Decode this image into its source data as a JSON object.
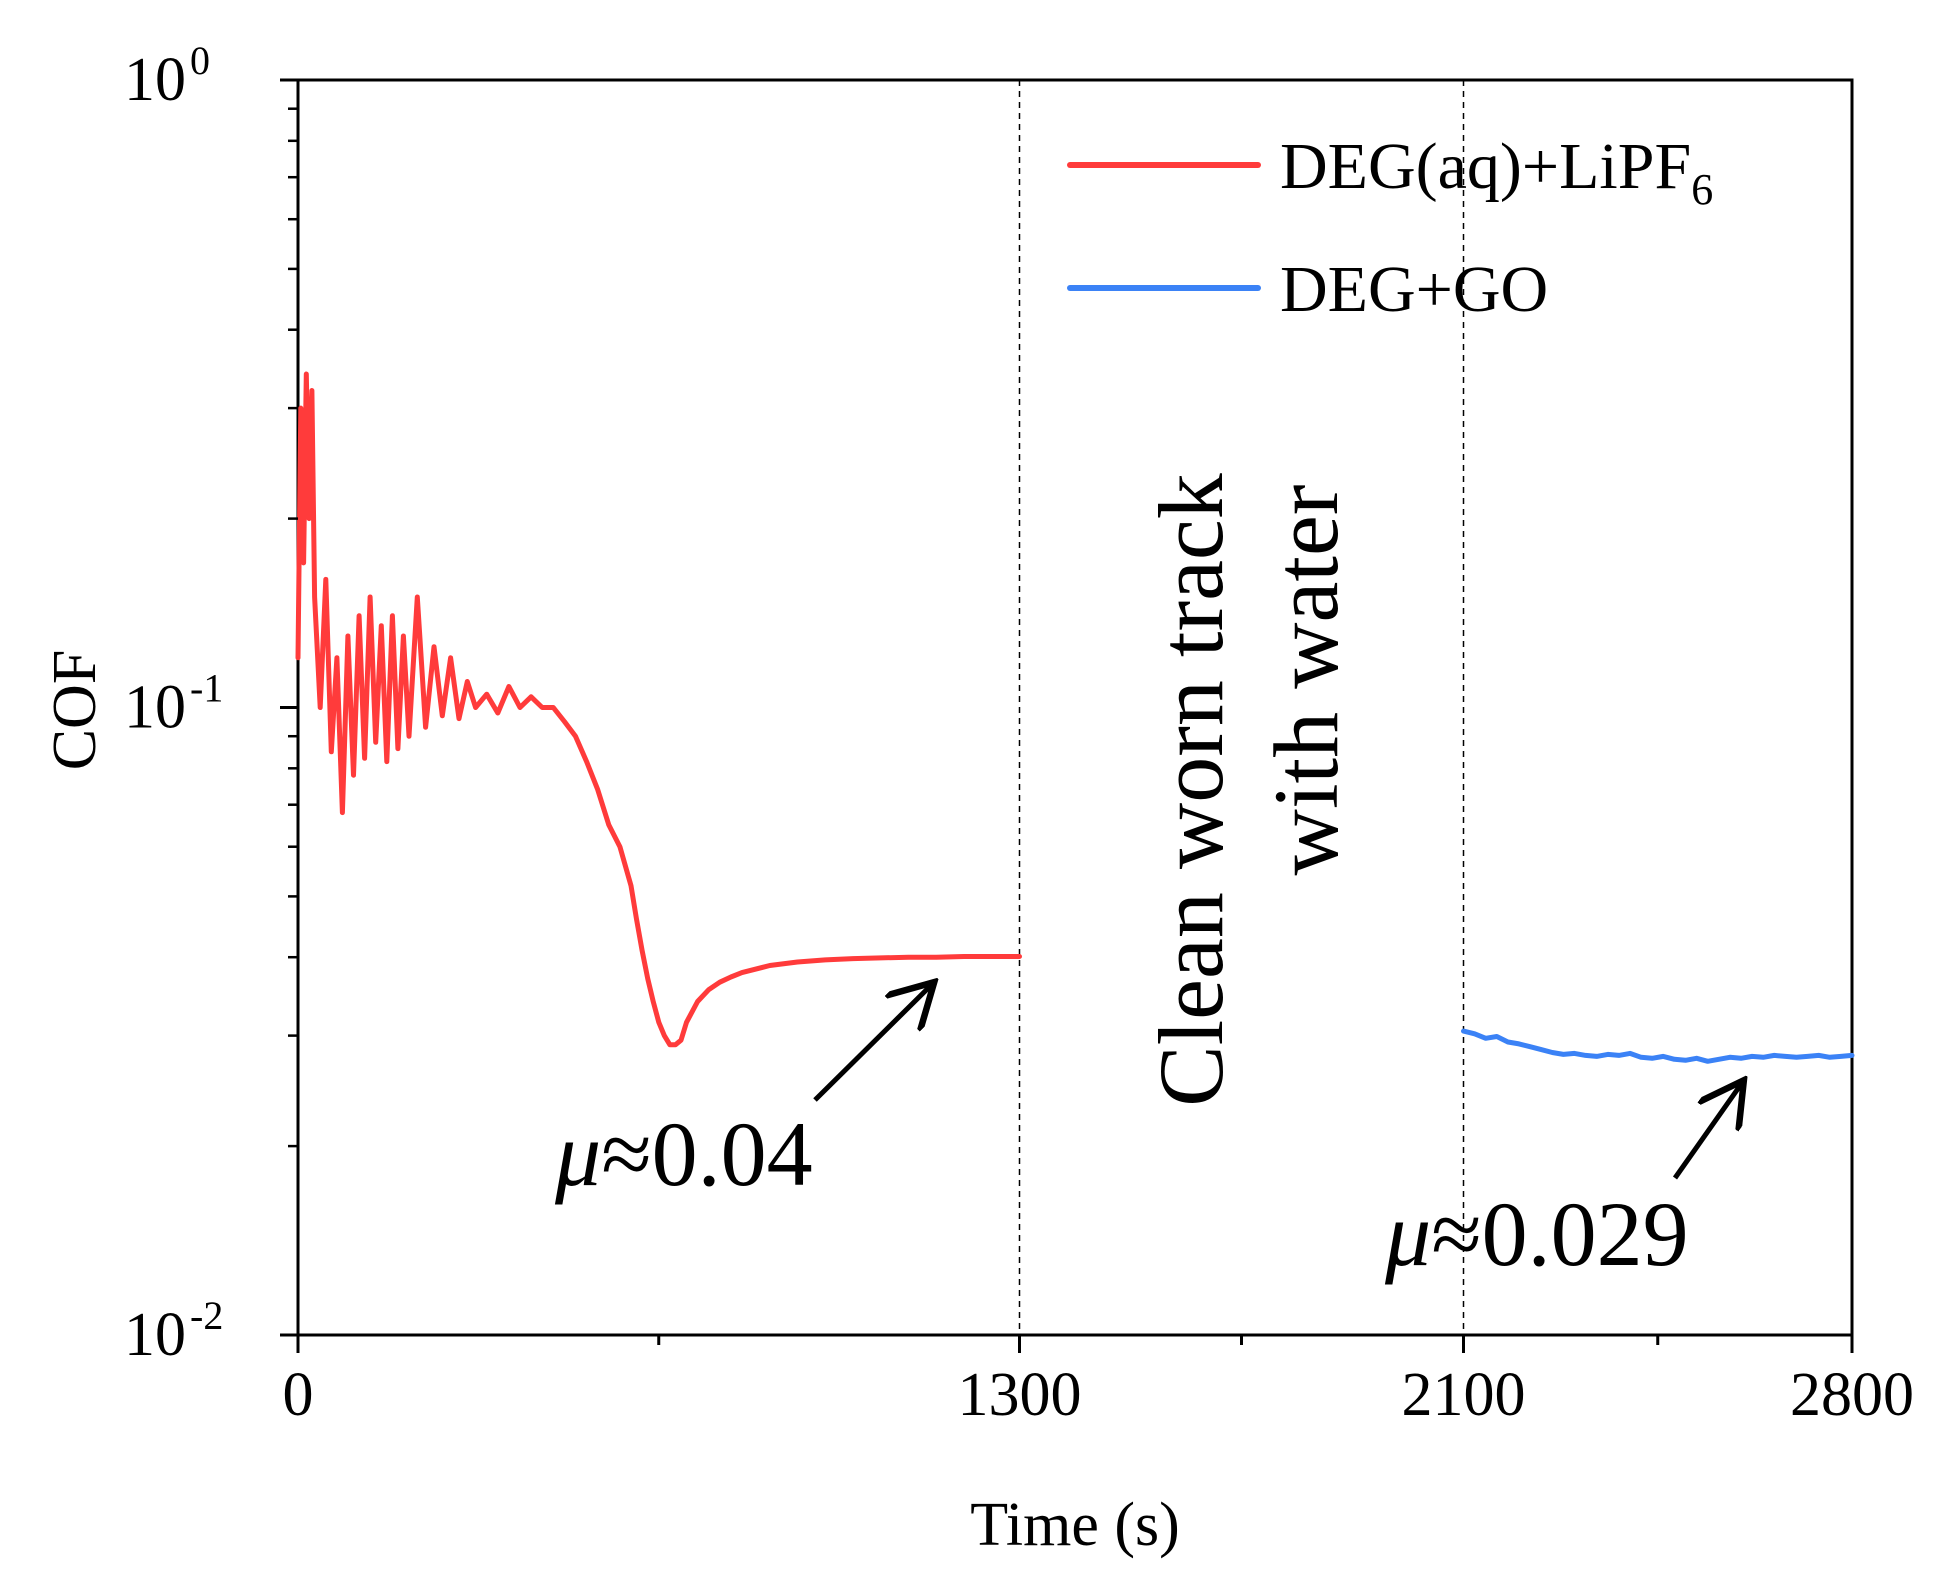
{
  "chart_data": {
    "type": "line",
    "xlabel": "Time (s)",
    "ylabel": "COF",
    "xlim": [
      0,
      2800
    ],
    "ylim": [
      0.01,
      1
    ],
    "yscale": "log",
    "x_ticks": [
      {
        "value": 0,
        "label": "0"
      },
      {
        "value": 1300,
        "label": "1300"
      },
      {
        "value": 2100,
        "label": "2100"
      },
      {
        "value": 2800,
        "label": "2800"
      }
    ],
    "x_minor_ticks": [
      650,
      1700,
      2450
    ],
    "y_ticks": [
      {
        "value": 1,
        "base": "10",
        "exp": "0"
      },
      {
        "value": 0.1,
        "base": "10",
        "exp": "-1"
      },
      {
        "value": 0.01,
        "base": "10",
        "exp": "-2"
      }
    ],
    "vlines": [
      1300,
      2100
    ],
    "legend": {
      "position": "top-right",
      "items": [
        {
          "label_main": "DEG(aq)+LiPF",
          "label_sub": "6"
        },
        {
          "label_main": "DEG+GO",
          "label_sub": ""
        }
      ]
    },
    "gap_annotation": {
      "lines": [
        "Clean worn track",
        "with water"
      ]
    },
    "series": [
      {
        "name": "DEG(aq)+LiPF6",
        "color": "#ff3b3b",
        "x": [
          0,
          5,
          10,
          15,
          20,
          25,
          30,
          40,
          50,
          60,
          70,
          80,
          90,
          100,
          110,
          120,
          130,
          140,
          150,
          160,
          170,
          180,
          190,
          200,
          215,
          230,
          245,
          260,
          275,
          290,
          305,
          320,
          340,
          360,
          380,
          400,
          420,
          440,
          460,
          480,
          500,
          520,
          540,
          560,
          580,
          600,
          610,
          620,
          630,
          640,
          650,
          660,
          670,
          680,
          690,
          700,
          720,
          740,
          760,
          780,
          800,
          850,
          900,
          950,
          1000,
          1050,
          1100,
          1150,
          1200,
          1250,
          1300
        ],
        "y": [
          0.12,
          0.3,
          0.17,
          0.34,
          0.2,
          0.32,
          0.15,
          0.1,
          0.16,
          0.085,
          0.12,
          0.068,
          0.13,
          0.078,
          0.14,
          0.083,
          0.15,
          0.088,
          0.135,
          0.082,
          0.14,
          0.086,
          0.13,
          0.09,
          0.15,
          0.093,
          0.125,
          0.097,
          0.12,
          0.096,
          0.11,
          0.1,
          0.105,
          0.098,
          0.108,
          0.1,
          0.104,
          0.1,
          0.1,
          0.095,
          0.09,
          0.082,
          0.074,
          0.065,
          0.06,
          0.052,
          0.046,
          0.041,
          0.037,
          0.034,
          0.0315,
          0.03,
          0.029,
          0.029,
          0.0295,
          0.0315,
          0.034,
          0.0355,
          0.0365,
          0.0372,
          0.0378,
          0.0388,
          0.0393,
          0.0396,
          0.0398,
          0.0399,
          0.04,
          0.04,
          0.0401,
          0.0401,
          0.0401
        ]
      },
      {
        "name": "DEG+GO",
        "color": "#3b82f6",
        "x": [
          2100,
          2120,
          2140,
          2160,
          2180,
          2200,
          2220,
          2240,
          2260,
          2280,
          2300,
          2320,
          2340,
          2360,
          2380,
          2400,
          2420,
          2440,
          2460,
          2480,
          2500,
          2520,
          2540,
          2560,
          2580,
          2600,
          2620,
          2640,
          2660,
          2680,
          2700,
          2720,
          2740,
          2760,
          2780,
          2800
        ],
        "y": [
          0.0305,
          0.0302,
          0.0297,
          0.0299,
          0.0293,
          0.0291,
          0.0288,
          0.0285,
          0.0282,
          0.028,
          0.0281,
          0.0279,
          0.0278,
          0.028,
          0.0279,
          0.0281,
          0.0277,
          0.0276,
          0.0278,
          0.0275,
          0.0274,
          0.0276,
          0.0273,
          0.0275,
          0.0277,
          0.0276,
          0.0278,
          0.0277,
          0.0279,
          0.0278,
          0.0277,
          0.0278,
          0.0279,
          0.0277,
          0.0278,
          0.0279
        ]
      }
    ],
    "annotations": [
      {
        "mu": "μ",
        "text": "≈0.04",
        "point_x": 1140,
        "point_y": 0.0385
      },
      {
        "mu": "μ",
        "text": "≈0.029",
        "point_x": 2600,
        "point_y": 0.0268
      }
    ]
  }
}
